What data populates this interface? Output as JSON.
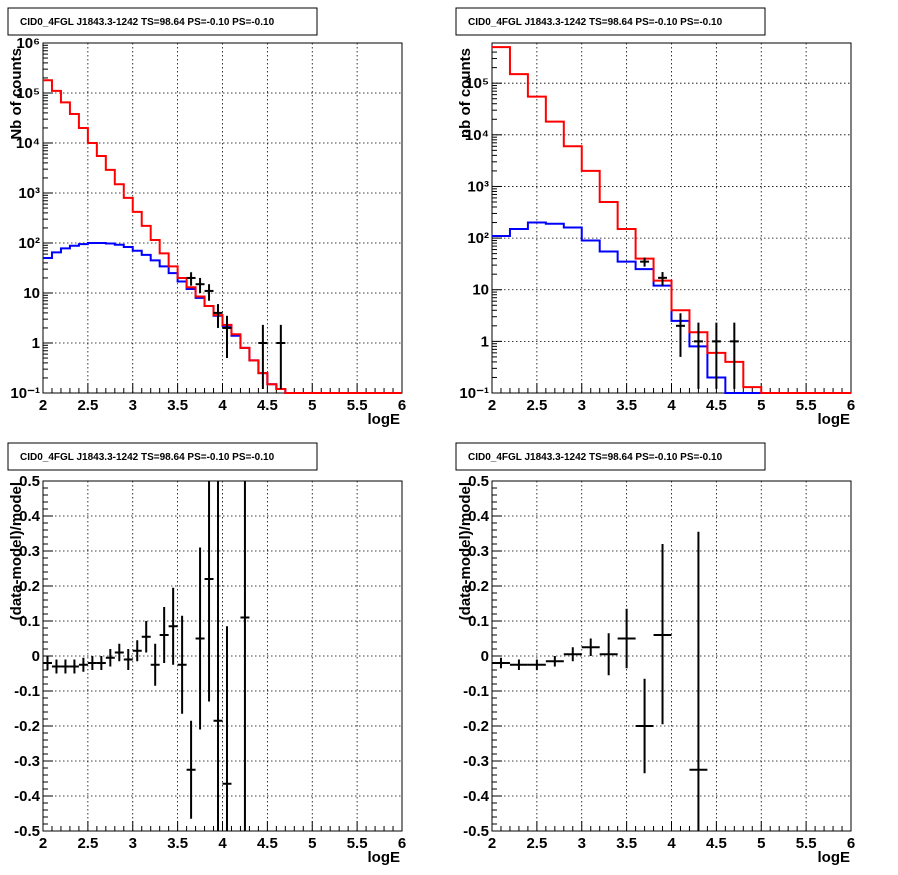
{
  "chart_data": [
    {
      "id": "counts-fine",
      "type": "line",
      "title": "CID0_4FGL J1843.3-1242 TS=98.64 PS=-0.10 PS=-0.10",
      "xlabel": "logE",
      "ylabel": "Nb of counts",
      "xlim": [
        2,
        6
      ],
      "ylim": [
        0.1,
        1000000
      ],
      "yscale": "log",
      "grid": true,
      "x_ticks": [
        "2",
        "2.5",
        "3",
        "3.5",
        "4",
        "4.5",
        "5",
        "5.5",
        "6"
      ],
      "y_ticks": [
        "10⁻¹",
        "1",
        "10",
        "10²",
        "10³",
        "10⁴",
        "10⁵",
        "10⁶"
      ],
      "bin_edges": [
        2.0,
        2.1,
        2.2,
        2.3,
        2.4,
        2.5,
        2.6,
        2.7,
        2.8,
        2.9,
        3.0,
        3.1,
        3.2,
        3.3,
        3.4,
        3.5,
        3.6,
        3.7,
        3.8,
        3.9,
        4.0,
        4.1,
        4.2,
        4.3,
        4.4,
        4.5,
        4.6,
        4.7,
        4.8,
        4.9,
        5.0,
        5.1,
        5.2,
        5.3,
        5.4,
        5.5,
        5.6,
        5.7,
        5.8,
        5.9,
        6.0
      ],
      "series": [
        {
          "name": "",
          "color": "#0000ff",
          "values": [
            50,
            65,
            78,
            88,
            95,
            100,
            100,
            98,
            92,
            83,
            70,
            58,
            45,
            34,
            25,
            17,
            12,
            8,
            5.5,
            3.5,
            2.2,
            1.4,
            0.8,
            0.45,
            0.25,
            0.15,
            0.12,
            0.1,
            0.1,
            0.1,
            0.1,
            0.1,
            0.1,
            0.1,
            0.1,
            0.1,
            0.1,
            0.1,
            0.1,
            0.1
          ]
        },
        {
          "name": "",
          "color": "#ff0000",
          "values": [
            180000,
            110000,
            65000,
            38000,
            20000,
            10000,
            5500,
            2900,
            1500,
            800,
            420,
            220,
            115,
            62,
            34,
            20,
            13,
            8.5,
            5.5,
            3.6,
            2.3,
            1.5,
            0.8,
            0.45,
            0.25,
            0.15,
            0.12,
            0.1,
            0.1,
            0.1,
            0.1,
            0.1,
            0.1,
            0.1,
            0.1,
            0.1,
            0.1,
            0.1,
            0.1,
            0.1
          ]
        }
      ],
      "points": [
        {
          "x": 3.65,
          "y": 20,
          "lo": 14,
          "hi": 26
        },
        {
          "x": 3.75,
          "y": 15,
          "lo": 10,
          "hi": 20
        },
        {
          "x": 3.85,
          "y": 11,
          "lo": 7,
          "hi": 15
        },
        {
          "x": 3.95,
          "y": 4,
          "lo": 2,
          "hi": 6
        },
        {
          "x": 4.05,
          "y": 2,
          "lo": 0.5,
          "hi": 3.5
        },
        {
          "x": 4.45,
          "y": 1,
          "lo": 0.12,
          "hi": 2.3
        },
        {
          "x": 4.65,
          "y": 1,
          "lo": 0.12,
          "hi": 2.3
        }
      ]
    },
    {
      "id": "counts-coarse",
      "type": "line",
      "title": "CID0_4FGL J1843.3-1242 TS=98.64 PS=-0.10 PS=-0.10",
      "xlabel": "logE",
      "ylabel": "nb of counts",
      "xlim": [
        2,
        6
      ],
      "ylim": [
        0.1,
        600000
      ],
      "yscale": "log",
      "grid": true,
      "x_ticks": [
        "2",
        "2.5",
        "3",
        "3.5",
        "4",
        "4.5",
        "5",
        "5.5",
        "6"
      ],
      "y_ticks": [
        "10⁻¹",
        "1",
        "10",
        "10²",
        "10³",
        "10⁴",
        "10⁵"
      ],
      "bin_edges": [
        2.0,
        2.2,
        2.4,
        2.6,
        2.8,
        3.0,
        3.2,
        3.4,
        3.6,
        3.8,
        4.0,
        4.2,
        4.4,
        4.6,
        4.8,
        5.0,
        5.2,
        5.4,
        5.6,
        5.8,
        6.0
      ],
      "series": [
        {
          "name": "",
          "color": "#0000ff",
          "values": [
            110,
            150,
            200,
            190,
            160,
            90,
            55,
            35,
            25,
            12,
            2.5,
            0.8,
            0.2,
            0.1,
            0.1,
            0.1,
            0.1,
            0.1,
            0.1,
            0.1
          ]
        },
        {
          "name": "",
          "color": "#ff0000",
          "values": [
            500000,
            150000,
            55000,
            18000,
            6000,
            2000,
            500,
            150,
            40,
            15,
            4,
            1.5,
            0.6,
            0.4,
            0.13,
            0.1,
            0.1,
            0.1,
            0.1,
            0.1
          ]
        }
      ],
      "points": [
        {
          "x": 3.7,
          "y": 35,
          "lo": 28,
          "hi": 42
        },
        {
          "x": 3.9,
          "y": 17,
          "lo": 12,
          "hi": 22
        },
        {
          "x": 4.1,
          "y": 2,
          "lo": 0.5,
          "hi": 3.5
        },
        {
          "x": 4.3,
          "y": 1,
          "lo": 0.12,
          "hi": 2.3
        },
        {
          "x": 4.5,
          "y": 1,
          "lo": 0.12,
          "hi": 2.3
        },
        {
          "x": 4.7,
          "y": 1,
          "lo": 0.12,
          "hi": 2.3
        }
      ]
    },
    {
      "id": "residual-fine",
      "type": "scatter",
      "title": "CID0_4FGL J1843.3-1242 TS=98.64 PS=-0.10 PS=-0.10",
      "xlabel": "logE",
      "ylabel": "(data-model)/model",
      "xlim": [
        2,
        6
      ],
      "ylim": [
        -0.5,
        0.5
      ],
      "yscale": "linear",
      "grid": true,
      "x_ticks": [
        "2",
        "2.5",
        "3",
        "3.5",
        "4",
        "4.5",
        "5",
        "5.5",
        "6"
      ],
      "y_ticks": [
        "-0.5",
        "-0.4",
        "-0.3",
        "-0.2",
        "-0.1",
        "0",
        "0.1",
        "0.2",
        "0.3",
        "0.4",
        "0.5"
      ],
      "xerr": 0.05,
      "points": [
        {
          "x": 2.05,
          "y": -0.02,
          "lo": -0.04,
          "hi": 0.0
        },
        {
          "x": 2.15,
          "y": -0.03,
          "lo": -0.05,
          "hi": -0.01
        },
        {
          "x": 2.25,
          "y": -0.03,
          "lo": -0.05,
          "hi": -0.01
        },
        {
          "x": 2.35,
          "y": -0.03,
          "lo": -0.05,
          "hi": -0.01
        },
        {
          "x": 2.45,
          "y": -0.025,
          "lo": -0.045,
          "hi": -0.005
        },
        {
          "x": 2.55,
          "y": -0.02,
          "lo": -0.04,
          "hi": 0.0
        },
        {
          "x": 2.65,
          "y": -0.02,
          "lo": -0.04,
          "hi": 0.0
        },
        {
          "x": 2.75,
          "y": -0.005,
          "lo": -0.03,
          "hi": 0.02
        },
        {
          "x": 2.85,
          "y": 0.01,
          "lo": -0.015,
          "hi": 0.035
        },
        {
          "x": 2.95,
          "y": -0.01,
          "lo": -0.04,
          "hi": 0.02
        },
        {
          "x": 3.05,
          "y": 0.015,
          "lo": -0.015,
          "hi": 0.045
        },
        {
          "x": 3.15,
          "y": 0.055,
          "lo": 0.01,
          "hi": 0.1
        },
        {
          "x": 3.25,
          "y": -0.025,
          "lo": -0.085,
          "hi": 0.035
        },
        {
          "x": 3.35,
          "y": 0.06,
          "lo": -0.02,
          "hi": 0.14
        },
        {
          "x": 3.45,
          "y": 0.085,
          "lo": -0.025,
          "hi": 0.195
        },
        {
          "x": 3.55,
          "y": -0.025,
          "lo": -0.165,
          "hi": 0.115
        },
        {
          "x": 3.65,
          "y": -0.325,
          "lo": -0.465,
          "hi": -0.185
        },
        {
          "x": 3.75,
          "y": 0.05,
          "lo": -0.21,
          "hi": 0.31
        },
        {
          "x": 3.85,
          "y": 0.22,
          "lo": -0.13,
          "hi": 0.5
        },
        {
          "x": 3.95,
          "y": -0.185,
          "lo": -0.5,
          "hi": 0.5
        },
        {
          "x": 4.05,
          "y": -0.365,
          "lo": -0.5,
          "hi": 0.085
        },
        {
          "x": 4.25,
          "y": 0.11,
          "lo": -0.5,
          "hi": 0.5
        }
      ]
    },
    {
      "id": "residual-coarse",
      "type": "scatter",
      "title": "CID0_4FGL J1843.3-1242 TS=98.64 PS=-0.10 PS=-0.10",
      "xlabel": "logE",
      "ylabel": "(data-model)/model",
      "xlim": [
        2,
        6
      ],
      "ylim": [
        -0.5,
        0.5
      ],
      "yscale": "linear",
      "grid": true,
      "x_ticks": [
        "2",
        "2.5",
        "3",
        "3.5",
        "4",
        "4.5",
        "5",
        "5.5",
        "6"
      ],
      "y_ticks": [
        "-0.5",
        "-0.4",
        "-0.3",
        "-0.2",
        "-0.1",
        "0",
        "0.1",
        "0.2",
        "0.3",
        "0.4",
        "0.5"
      ],
      "xerr": 0.1,
      "points": [
        {
          "x": 2.1,
          "y": -0.02,
          "lo": -0.035,
          "hi": -0.005
        },
        {
          "x": 2.3,
          "y": -0.025,
          "lo": -0.04,
          "hi": -0.01
        },
        {
          "x": 2.5,
          "y": -0.025,
          "lo": -0.04,
          "hi": -0.01
        },
        {
          "x": 2.7,
          "y": -0.015,
          "lo": -0.03,
          "hi": 0.0
        },
        {
          "x": 2.9,
          "y": 0.005,
          "lo": -0.015,
          "hi": 0.025
        },
        {
          "x": 3.1,
          "y": 0.025,
          "lo": 0.0,
          "hi": 0.05
        },
        {
          "x": 3.3,
          "y": 0.005,
          "lo": -0.055,
          "hi": 0.065
        },
        {
          "x": 3.5,
          "y": 0.05,
          "lo": -0.035,
          "hi": 0.135
        },
        {
          "x": 3.7,
          "y": -0.2,
          "lo": -0.335,
          "hi": -0.065
        },
        {
          "x": 3.9,
          "y": 0.06,
          "lo": -0.195,
          "hi": 0.32
        },
        {
          "x": 4.3,
          "y": -0.325,
          "lo": -0.5,
          "hi": 0.355
        }
      ]
    }
  ]
}
